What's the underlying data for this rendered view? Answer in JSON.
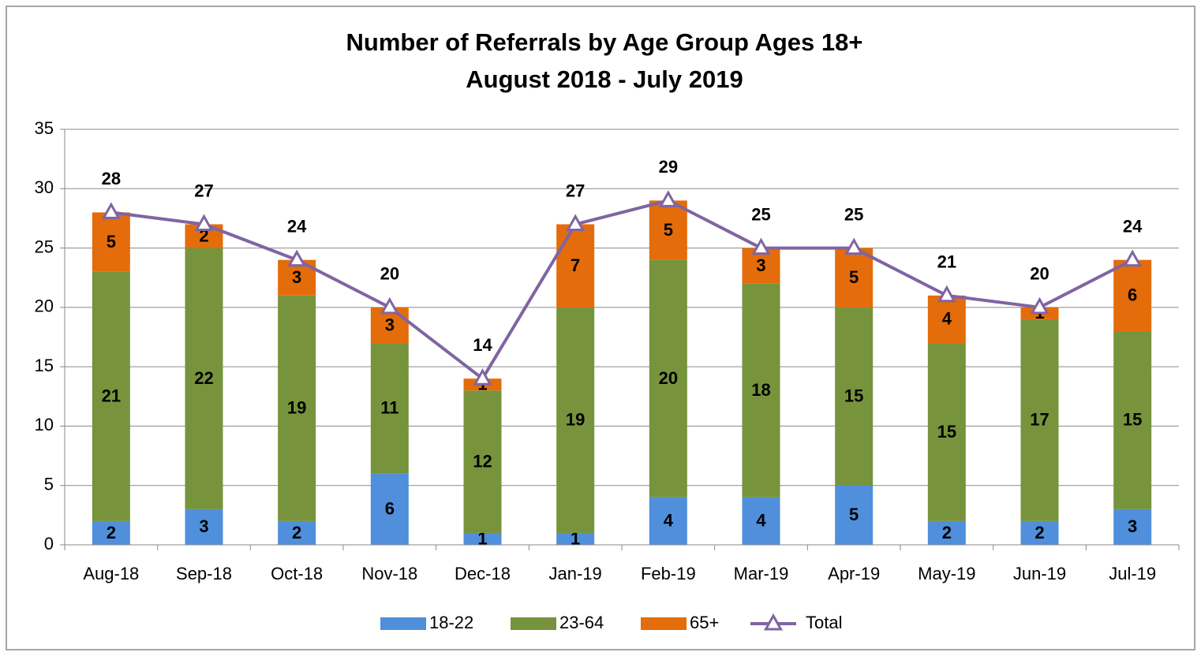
{
  "chart_data": {
    "type": "stacked_bar_line",
    "title": "Number of Referrals by Age Group Ages 18+",
    "subtitle": "August 2018 - July 2019",
    "categories": [
      "Aug-18",
      "Sep-18",
      "Oct-18",
      "Nov-18",
      "Dec-18",
      "Jan-19",
      "Feb-19",
      "Mar-19",
      "Apr-19",
      "May-19",
      "Jun-19",
      "Jul-19"
    ],
    "series": [
      {
        "name": "18-22",
        "color": "#4f8fdb",
        "kind": "bar",
        "values": [
          2,
          3,
          2,
          6,
          1,
          1,
          4,
          4,
          5,
          2,
          2,
          3
        ]
      },
      {
        "name": "23-64",
        "color": "#77933c",
        "kind": "bar",
        "values": [
          21,
          22,
          19,
          11,
          12,
          19,
          20,
          18,
          15,
          15,
          17,
          15
        ]
      },
      {
        "name": "65+",
        "color": "#e46c0a",
        "kind": "bar",
        "values": [
          5,
          2,
          3,
          3,
          1,
          7,
          5,
          3,
          5,
          4,
          1,
          6
        ]
      },
      {
        "name": "Total",
        "color": "#8064a2",
        "kind": "line",
        "values": [
          28,
          27,
          24,
          20,
          14,
          27,
          29,
          25,
          25,
          21,
          20,
          24
        ]
      }
    ],
    "ylim": [
      0,
      35
    ],
    "yticks": [
      0,
      5,
      10,
      15,
      20,
      25,
      30,
      35
    ],
    "grid": true,
    "legend": "bottom"
  }
}
